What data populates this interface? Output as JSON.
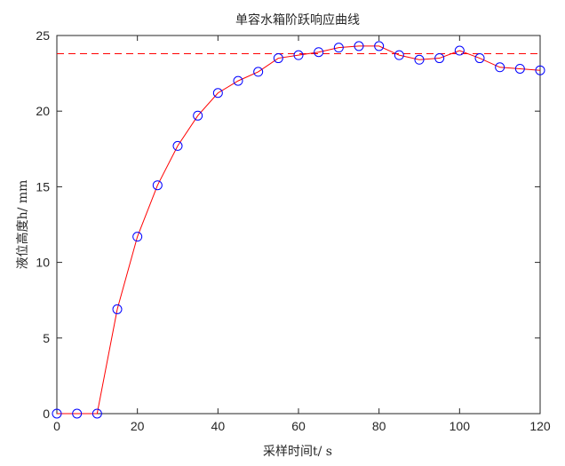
{
  "chart_data": {
    "type": "line",
    "title": "单容水箱阶跃响应曲线",
    "xlabel": "采样时间t/ s",
    "ylabel": "液位高度h/ mm",
    "xlim": [
      0,
      120
    ],
    "ylim": [
      0,
      25
    ],
    "xticks": [
      0,
      20,
      40,
      60,
      80,
      100,
      120
    ],
    "yticks": [
      0,
      5,
      10,
      15,
      20,
      25
    ],
    "grid": false,
    "legend": "none",
    "series": [
      {
        "x": [
          0,
          5,
          10,
          15,
          20,
          25,
          30,
          35,
          40,
          45,
          50,
          55,
          60,
          65,
          70,
          75,
          80,
          85,
          90,
          95,
          100,
          105,
          110,
          115,
          120
        ],
        "y": [
          0,
          0,
          0,
          6.9,
          11.7,
          15.1,
          17.7,
          19.7,
          21.2,
          22.0,
          22.6,
          23.5,
          23.7,
          23.9,
          24.2,
          24.3,
          24.3,
          23.7,
          23.4,
          23.5,
          24.0,
          23.5,
          22.9,
          22.8,
          22.7
        ],
        "line_color": "#ff0000",
        "marker": "circle",
        "marker_color": "#0000ff"
      }
    ],
    "reference_lines": [
      {
        "orientation": "horizontal",
        "y": 23.8,
        "style": "dashed",
        "color": "#ff0000"
      }
    ]
  }
}
